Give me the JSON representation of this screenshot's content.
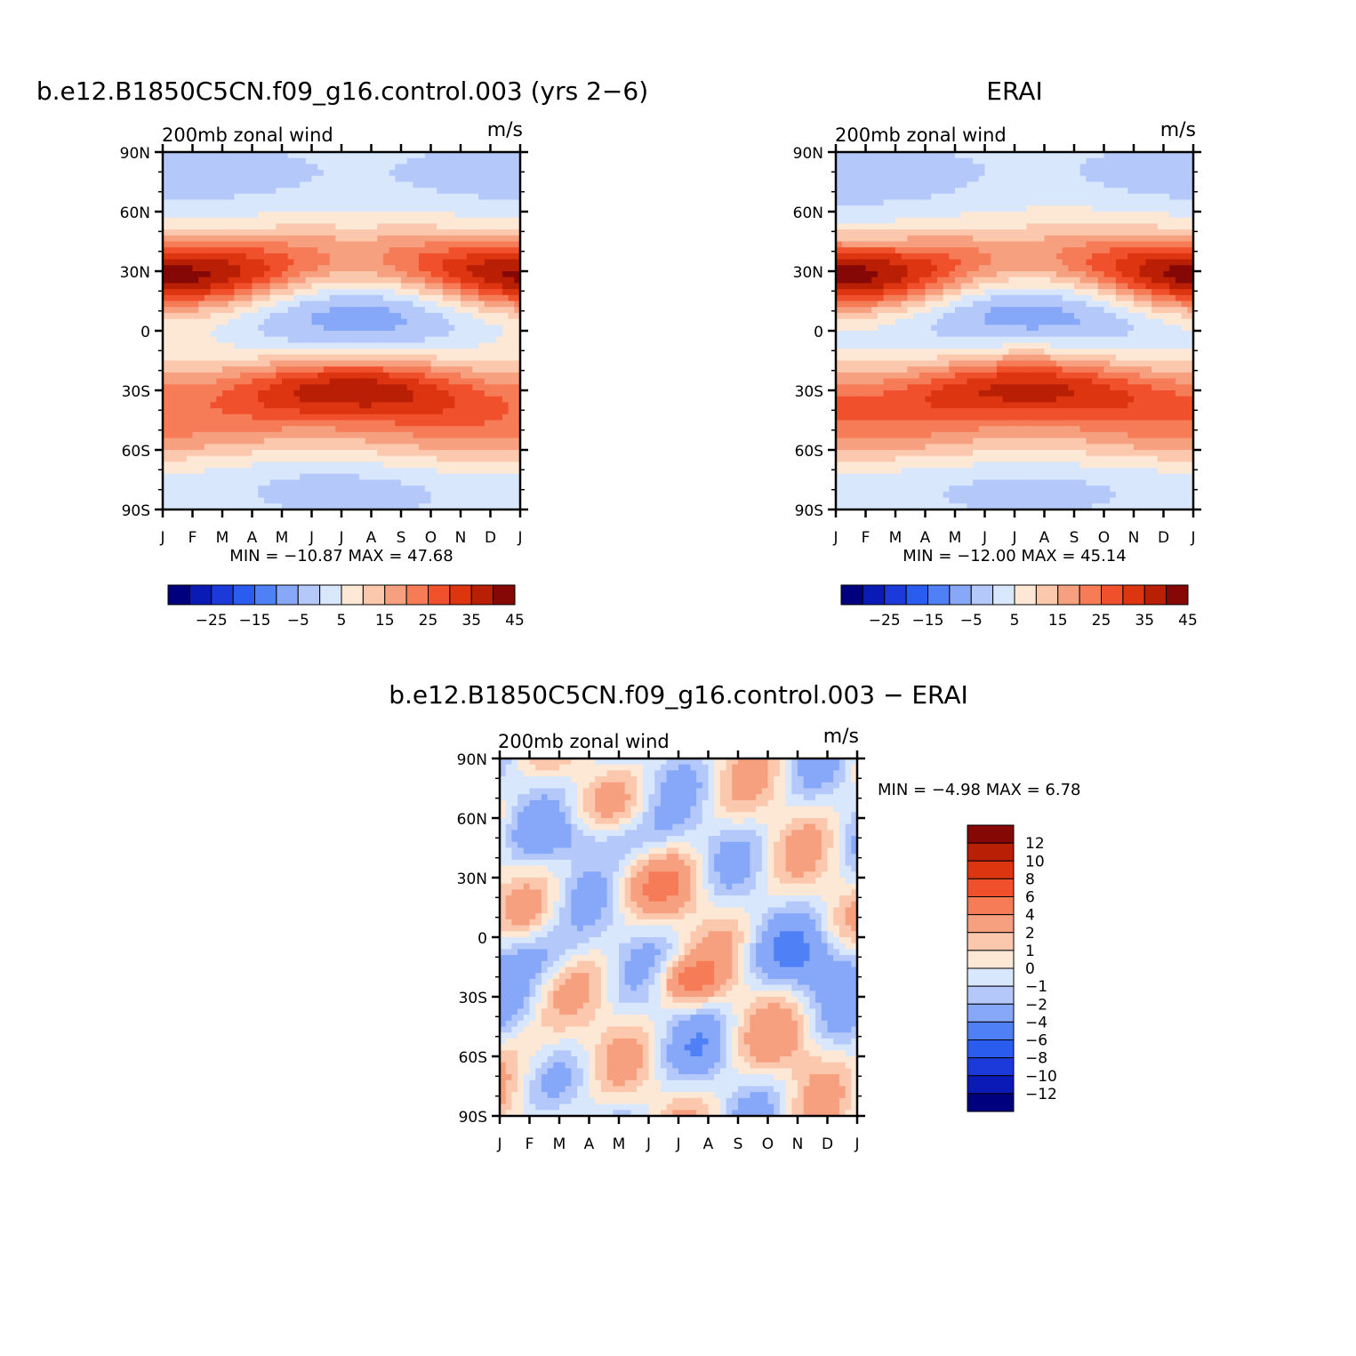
{
  "colors": {
    "full": [
      "#00007f",
      "#0a1bb5",
      "#1c3ad9",
      "#2b5cf0",
      "#4f80f6",
      "#87a8f8",
      "#b4c9fa",
      "#d9e7fc",
      "#fde8d6",
      "#fbc8ae",
      "#f7a080",
      "#f57c57",
      "#f0502b",
      "#dd3510",
      "#b91f05",
      "#860806"
    ],
    "diff": [
      "#00007f",
      "#0a1bb5",
      "#1c3ad9",
      "#2b5cf0",
      "#4f80f6",
      "#87a8f8",
      "#b4c9fa",
      "#d9e7fc",
      "#fde8d6",
      "#fbc8ae",
      "#f7a080",
      "#f57c57",
      "#f0502b",
      "#dd3510",
      "#b91f05",
      "#860806"
    ]
  },
  "chart_data": [
    {
      "id": "model",
      "type": "heatmap",
      "title": "b.e12.B1850C5CN.f09_g16.control.003 (yrs 2−6)",
      "left_label": "200mb  zonal  wind",
      "right_label": "m/s",
      "x_ticks": [
        "J",
        "F",
        "M",
        "A",
        "M",
        "J",
        "J",
        "A",
        "S",
        "O",
        "N",
        "D",
        "J"
      ],
      "y_ticks": [
        "90N",
        "60N",
        "30N",
        "0",
        "30S",
        "60S",
        "90S"
      ],
      "ylim": [
        -90,
        90
      ],
      "minmax": "MIN =  −10.87  MAX =    47.68",
      "min": -10.87,
      "max": 47.68,
      "colorbar_labels": [
        "−25",
        "−15",
        "−5",
        "5",
        "15",
        "25",
        "35",
        "45"
      ],
      "levels": [
        -35,
        -30,
        -25,
        -20,
        -15,
        -10,
        -5,
        0,
        5,
        10,
        15,
        20,
        25,
        30,
        35,
        40,
        45,
        50
      ]
    },
    {
      "id": "obs",
      "type": "heatmap",
      "title": "ERAI",
      "left_label": "200mb  zonal  wind",
      "right_label": "m/s",
      "x_ticks": [
        "J",
        "F",
        "M",
        "A",
        "M",
        "J",
        "J",
        "A",
        "S",
        "O",
        "N",
        "D",
        "J"
      ],
      "y_ticks": [
        "90N",
        "60N",
        "30N",
        "0",
        "30S",
        "60S",
        "90S"
      ],
      "ylim": [
        -90,
        90
      ],
      "minmax": "MIN =  −12.00  MAX =    45.14",
      "min": -12.0,
      "max": 45.14,
      "colorbar_labels": [
        "−25",
        "−15",
        "−5",
        "5",
        "15",
        "25",
        "35",
        "45"
      ],
      "levels": [
        -35,
        -30,
        -25,
        -20,
        -15,
        -10,
        -5,
        0,
        5,
        10,
        15,
        20,
        25,
        30,
        35,
        40,
        45,
        50
      ]
    },
    {
      "id": "diff",
      "type": "heatmap",
      "title": "b.e12.B1850C5CN.f09_g16.control.003  −  ERAI",
      "left_label": "200mb  zonal  wind",
      "right_label": "m/s",
      "x_ticks": [
        "J",
        "F",
        "M",
        "A",
        "M",
        "J",
        "J",
        "A",
        "S",
        "O",
        "N",
        "D",
        "J"
      ],
      "y_ticks": [
        "90N",
        "60N",
        "30N",
        "0",
        "30S",
        "60S",
        "90S"
      ],
      "ylim": [
        -90,
        90
      ],
      "minmax": "MIN =    −4.98  MAX =     6.78",
      "min": -4.98,
      "max": 6.78,
      "colorbar_labels": [
        "12",
        "10",
        "8",
        "6",
        "4",
        "2",
        "1",
        "0",
        "−1",
        "−2",
        "−4",
        "−6",
        "−8",
        "−10",
        "−12"
      ],
      "levels": [
        -12,
        -10,
        -8,
        -6,
        -4,
        -2,
        -1,
        0,
        1,
        2,
        4,
        6,
        8,
        10,
        12
      ]
    }
  ]
}
